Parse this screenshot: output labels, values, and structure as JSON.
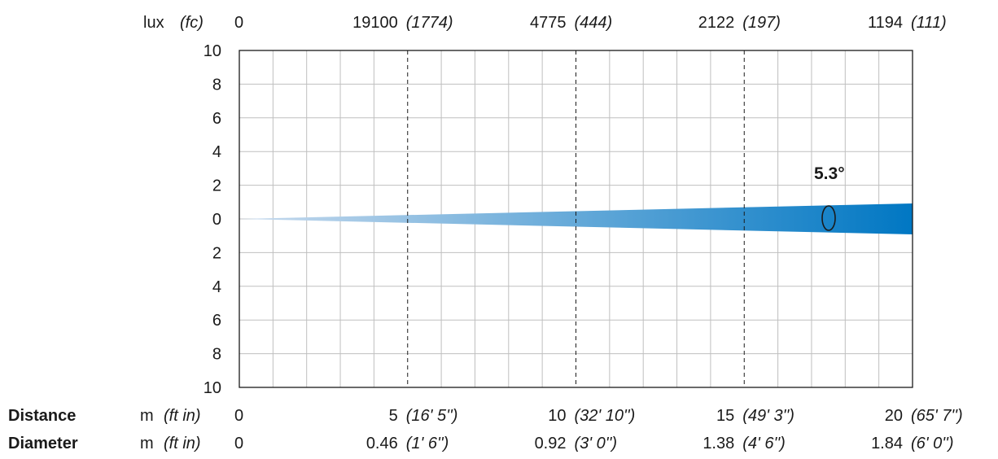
{
  "chart_data": {
    "type": "area",
    "title": "",
    "beam_angle_label": "5.3°",
    "x": {
      "min": 0,
      "max": 20,
      "gridlines_minor_step": 1,
      "marked_every": 5,
      "distance_ticks": [
        0,
        5,
        10,
        15,
        20
      ],
      "distance_ticks_ft": [
        "",
        "(16' 5'')",
        "(32' 10'')",
        "(49' 3'')",
        "(65' 7'')"
      ],
      "diameter_values_m": [
        "0",
        "0.46",
        "0.92",
        "1.38",
        "1.84"
      ],
      "diameter_values_ft": [
        "",
        "(1' 6'')",
        "(3' 0'')",
        "(4' 6'')",
        "(6' 0'')"
      ],
      "lux_values": [
        "0",
        "19100",
        "4775",
        "2122",
        "1194"
      ],
      "fc_values": [
        "",
        "(1774)",
        "(444)",
        "(197)",
        "(111)"
      ]
    },
    "y": {
      "min": -10,
      "max": 10,
      "step": 2,
      "tick_labels": [
        "10",
        "8",
        "6",
        "4",
        "2",
        "0",
        "2",
        "4",
        "6",
        "8",
        "10"
      ]
    },
    "series": [
      {
        "half_width_at_x": [
          [
            0,
            0
          ],
          [
            20,
            0.92
          ]
        ]
      }
    ],
    "grid": true,
    "colors": {
      "beam_start": "#c9dbee",
      "beam_end": "#0077c3",
      "grid": "#bfbfbf",
      "frame": "#1a1a1a",
      "marker_line": "#1a1a1a"
    }
  },
  "labels": {
    "lux_unit": "lux",
    "fc_unit": "(fc)",
    "distance_label": "Distance",
    "diameter_label": "Diameter",
    "m_unit": "m",
    "ft_in_unit": "(ft in)"
  }
}
